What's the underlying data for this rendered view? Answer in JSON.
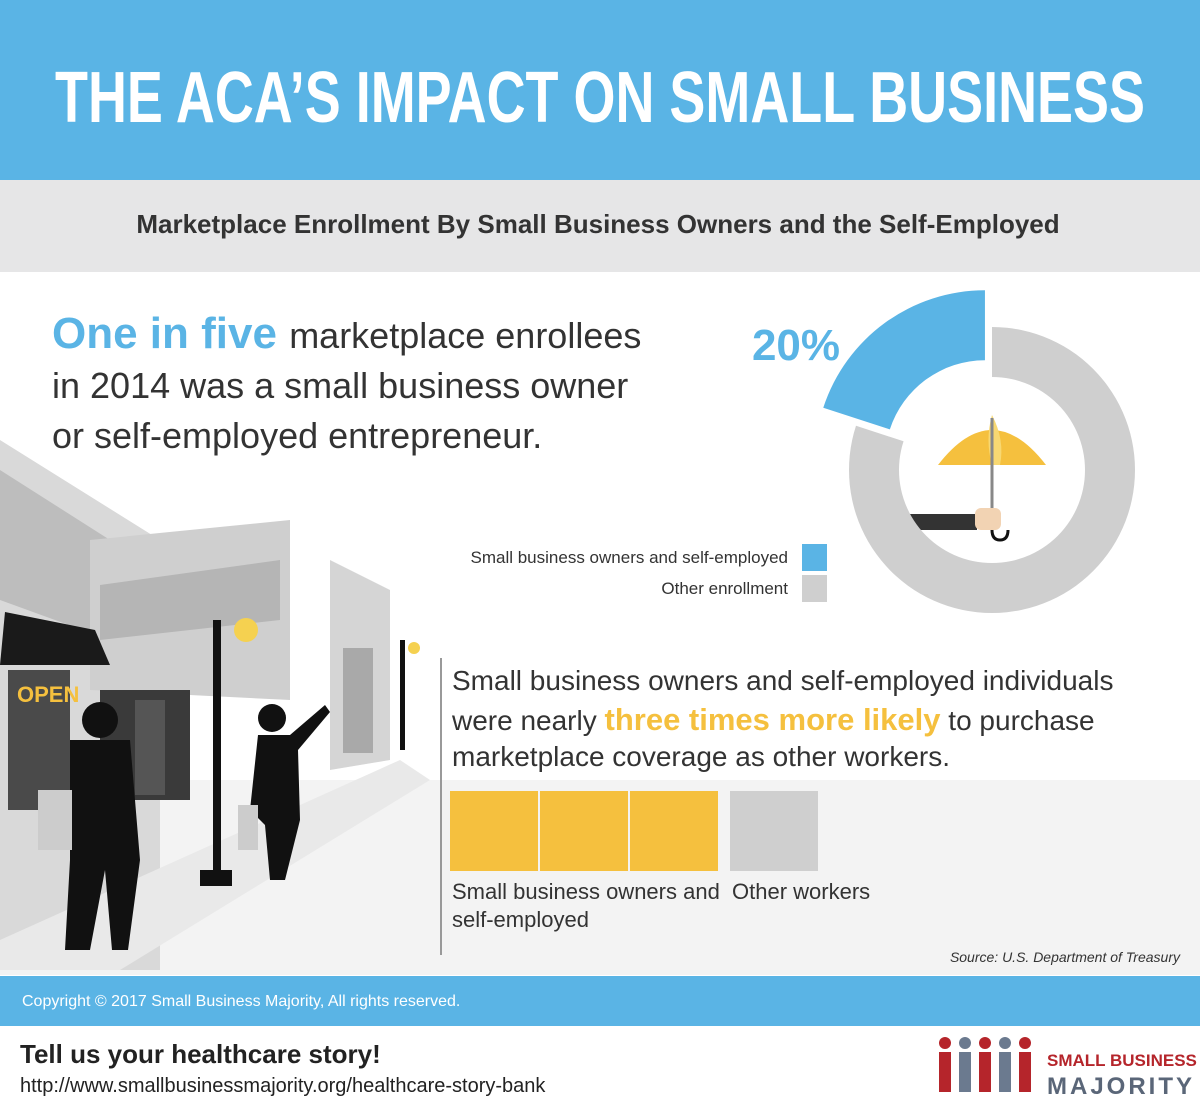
{
  "header": {
    "title": "THE ACA’S IMPACT ON SMALL BUSINESS",
    "subtitle": "Marketplace Enrollment By Small Business Owners and the Self-Employed"
  },
  "intro": {
    "highlight": "One in five",
    "lines": [
      "marketplace enrollees",
      "in 2014 was a small business owner",
      "or self-employed entrepreneur."
    ]
  },
  "chart_data": [
    {
      "type": "pie",
      "categories": [
        "Small business owners and self-employed",
        "Other enrollment"
      ],
      "values": [
        20,
        80
      ],
      "value_labels": [
        "20%",
        null
      ],
      "colors": [
        "#5ab4e5",
        "#cfcfcf"
      ]
    },
    {
      "type": "pictograph",
      "categories": [
        "Small business owners and self-employed",
        "Other workers"
      ],
      "values": [
        3,
        1
      ],
      "colors": [
        "#f5c03e",
        "#cfcfcf"
      ]
    }
  ],
  "comparison": {
    "line1": "Small business owners and self-employed individuals",
    "line2_before": "were nearly ",
    "highlight": "three times more likely",
    "line2_after": " to purchase",
    "line3": "marketplace coverage as other workers."
  },
  "source": "Source: U.S. Department of Treasury",
  "footer": {
    "copyright": "Copyright © 2017 Small Business Majority, All rights reserved.",
    "cta": "Tell us your healthcare story!",
    "url": "http://www.smallbusinessmajority.org/healthcare-story-bank",
    "logo_top": "SMALL BUSINESS",
    "logo_bottom": "MAJORITY"
  }
}
